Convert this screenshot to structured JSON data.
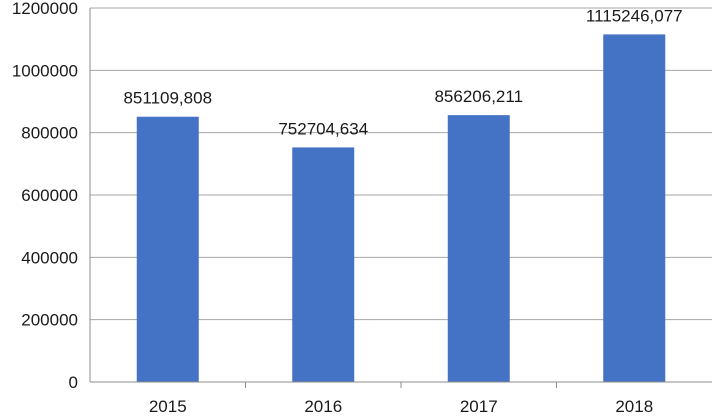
{
  "chart_data": {
    "type": "bar",
    "title": "",
    "xlabel": "",
    "ylabel": "",
    "categories": [
      "2015",
      "2016",
      "2017",
      "2018"
    ],
    "values": [
      851109.808,
      752704.634,
      856206.211,
      1115246.077
    ],
    "data_labels": [
      "851109,808",
      "752704,634",
      "856206,211",
      "1115246,077"
    ],
    "ylim": [
      0,
      1200000
    ],
    "yticks": [
      0,
      200000,
      400000,
      600000,
      800000,
      1000000,
      1200000
    ],
    "ytick_labels": [
      "0",
      "200000",
      "400000",
      "600000",
      "800000",
      "1000000",
      "1200000"
    ],
    "grid": true,
    "legend": "none",
    "colors": {
      "bar": "#4472C4",
      "grid": "#A6A6A6",
      "axis": "#8C8C8C"
    }
  }
}
